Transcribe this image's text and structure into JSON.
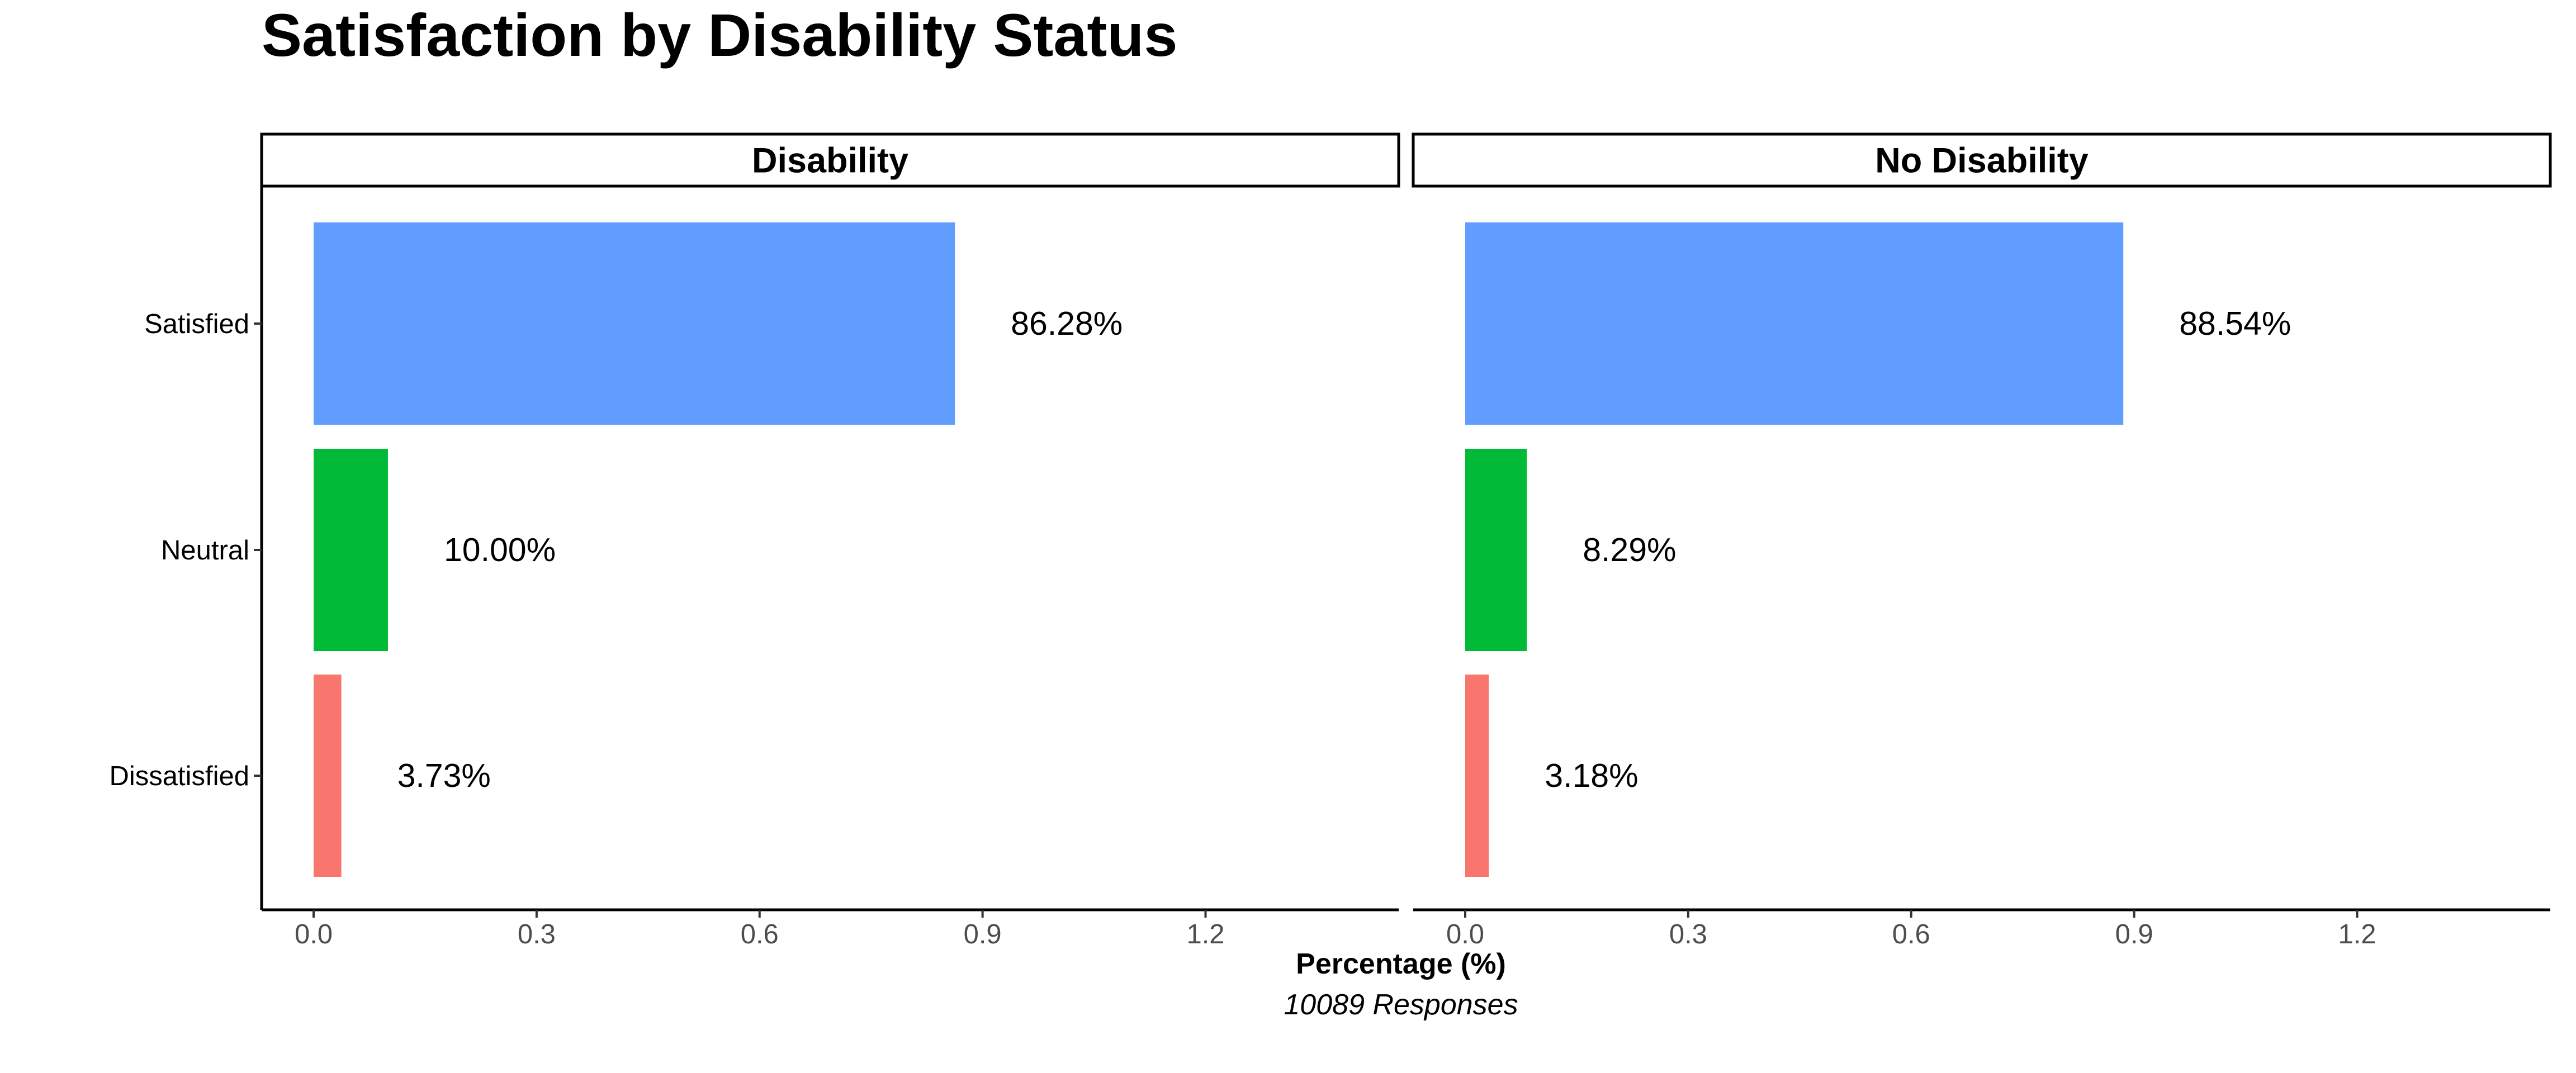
{
  "chart_data": {
    "type": "bar",
    "orientation": "horizontal",
    "title": "Satisfaction by Disability Status",
    "xlabel": "Percentage (%)",
    "caption": "10089 Responses",
    "categories": [
      "Satisfied",
      "Neutral",
      "Dissatisfied"
    ],
    "xlim": [
      0,
      1.2
    ],
    "xticks": [
      "0.0",
      "0.3",
      "0.6",
      "0.9",
      "1.2"
    ],
    "xtick_values": [
      0,
      0.3,
      0.6,
      0.9,
      1.2
    ],
    "grid": false,
    "legend": "none",
    "colors": {
      "Satisfied": "#619CFF",
      "Neutral": "#00BA38",
      "Dissatisfied": "#F8766D"
    },
    "panels": [
      {
        "name": "Disability",
        "values": [
          0.8628,
          0.1,
          0.0373
        ],
        "labels": [
          "86.28%",
          "10.00%",
          "3.73%"
        ]
      },
      {
        "name": "No Disability",
        "values": [
          0.8854,
          0.0829,
          0.0318
        ],
        "labels": [
          "88.54%",
          "8.29%",
          "3.18%"
        ]
      }
    ]
  }
}
